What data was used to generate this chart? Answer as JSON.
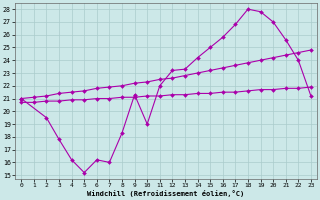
{
  "xlabel": "Windchill (Refroidissement éolien,°C)",
  "bg_color": "#cce8e8",
  "grid_color": "#aacccc",
  "line_color": "#aa00aa",
  "xlim_min": -0.5,
  "xlim_max": 23.5,
  "ylim_min": 14.7,
  "ylim_max": 28.5,
  "xticks": [
    0,
    1,
    2,
    3,
    4,
    5,
    6,
    7,
    8,
    9,
    10,
    11,
    12,
    13,
    14,
    15,
    16,
    17,
    18,
    19,
    20,
    21,
    22,
    23
  ],
  "yticks": [
    15,
    16,
    17,
    18,
    19,
    20,
    21,
    22,
    23,
    24,
    25,
    26,
    27,
    28
  ],
  "line1_x": [
    0,
    1,
    2,
    3,
    4,
    5,
    6,
    7,
    8,
    9,
    10,
    11,
    12,
    13,
    14,
    15,
    16,
    17,
    18,
    19,
    20,
    21,
    22,
    23
  ],
  "line1_y": [
    21.0,
    21.1,
    21.2,
    21.4,
    21.5,
    21.6,
    21.8,
    21.9,
    22.0,
    22.2,
    22.3,
    22.5,
    22.6,
    22.8,
    23.0,
    23.2,
    23.4,
    23.6,
    23.8,
    24.0,
    24.2,
    24.4,
    24.6,
    24.8
  ],
  "line2_x": [
    0,
    2,
    3,
    4,
    5,
    6,
    7,
    8,
    9,
    10,
    11,
    12,
    13,
    14,
    15,
    16,
    17,
    18,
    19,
    20,
    21,
    22,
    23
  ],
  "line2_y": [
    21.0,
    19.5,
    17.8,
    16.2,
    15.2,
    16.2,
    16.0,
    18.3,
    21.3,
    19.0,
    22.0,
    23.2,
    23.3,
    24.2,
    25.0,
    25.8,
    26.8,
    28.0,
    27.8,
    27.0,
    25.6,
    24.0,
    21.2
  ],
  "line3_x": [
    0,
    1,
    2,
    3,
    4,
    5,
    6,
    7,
    8,
    9,
    10,
    11,
    12,
    13,
    14,
    15,
    16,
    17,
    18,
    19,
    20,
    21,
    22,
    23
  ],
  "line3_y": [
    20.7,
    20.7,
    20.8,
    20.8,
    20.9,
    20.9,
    21.0,
    21.0,
    21.1,
    21.1,
    21.2,
    21.2,
    21.3,
    21.3,
    21.4,
    21.4,
    21.5,
    21.5,
    21.6,
    21.7,
    21.7,
    21.8,
    21.8,
    21.9
  ]
}
